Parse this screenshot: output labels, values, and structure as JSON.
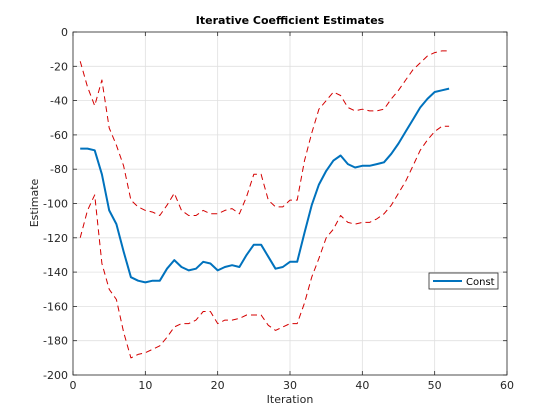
{
  "chart_data": {
    "type": "line",
    "title": "Iterative Coefficient Estimates",
    "xlabel": "Iteration",
    "ylabel": "Estimate",
    "xlim": [
      0,
      60
    ],
    "ylim": [
      -200,
      0
    ],
    "xticks": [
      0,
      10,
      20,
      30,
      40,
      50,
      60
    ],
    "yticks": [
      0,
      -20,
      -40,
      -60,
      -80,
      -100,
      -120,
      -140,
      -160,
      -180,
      -200
    ],
    "grid": true,
    "legend": {
      "placement": "right",
      "entries": [
        "Const"
      ]
    },
    "colors": {
      "estimate": "#0072bd",
      "bounds": "#d40000",
      "grid": "#e0e0e0",
      "axis": "#262626"
    },
    "x": [
      1,
      2,
      3,
      4,
      5,
      6,
      7,
      8,
      9,
      10,
      11,
      12,
      13,
      14,
      15,
      16,
      17,
      18,
      19,
      20,
      21,
      22,
      23,
      24,
      25,
      26,
      27,
      28,
      29,
      30,
      31,
      32,
      33,
      34,
      35,
      36,
      37,
      38,
      39,
      40,
      41,
      42,
      43,
      44,
      45,
      46,
      47,
      48,
      49,
      50,
      51,
      52
    ],
    "series": [
      {
        "name": "Const",
        "role": "estimate",
        "values": [
          -68,
          -68,
          -69,
          -83,
          -104,
          -112,
          -128,
          -143,
          -145,
          -146,
          -145,
          -145,
          -138,
          -133,
          -137,
          -139,
          -138,
          -134,
          -135,
          -139,
          -137,
          -136,
          -137,
          -130,
          -124,
          -124,
          -131,
          -138,
          -137,
          -134,
          -134,
          -117,
          -101,
          -89,
          -81,
          -75,
          -72,
          -77,
          -79,
          -78,
          -78,
          -77,
          -76,
          -71,
          -65,
          -58,
          -51,
          -44,
          -39,
          -35,
          -34,
          -33
        ]
      },
      {
        "role": "upper-bound",
        "values": [
          -17,
          -32,
          -43,
          -28,
          -56,
          -66,
          -78,
          -98,
          -102,
          -104,
          -105,
          -107,
          -101,
          -94,
          -104,
          -107,
          -107,
          -104,
          -106,
          -106,
          -104,
          -103,
          -106,
          -96,
          -83,
          -83,
          -98,
          -102,
          -102,
          -98,
          -98,
          -75,
          -59,
          -45,
          -40,
          -35,
          -37,
          -44,
          -46,
          -45,
          -46,
          -46,
          -45,
          -39,
          -34,
          -28,
          -22,
          -18,
          -14,
          -12,
          -11,
          -11
        ]
      },
      {
        "role": "lower-bound",
        "values": [
          -120,
          -104,
          -95,
          -135,
          -150,
          -156,
          -175,
          -190,
          -188,
          -187,
          -185,
          -183,
          -178,
          -172,
          -170,
          -170,
          -168,
          -163,
          -163,
          -170,
          -168,
          -168,
          -167,
          -165,
          -165,
          -165,
          -171,
          -174,
          -172,
          -170,
          -170,
          -158,
          -143,
          -132,
          -120,
          -115,
          -107,
          -111,
          -112,
          -111,
          -111,
          -109,
          -106,
          -101,
          -94,
          -87,
          -78,
          -69,
          -63,
          -58,
          -55,
          -55
        ]
      }
    ]
  }
}
